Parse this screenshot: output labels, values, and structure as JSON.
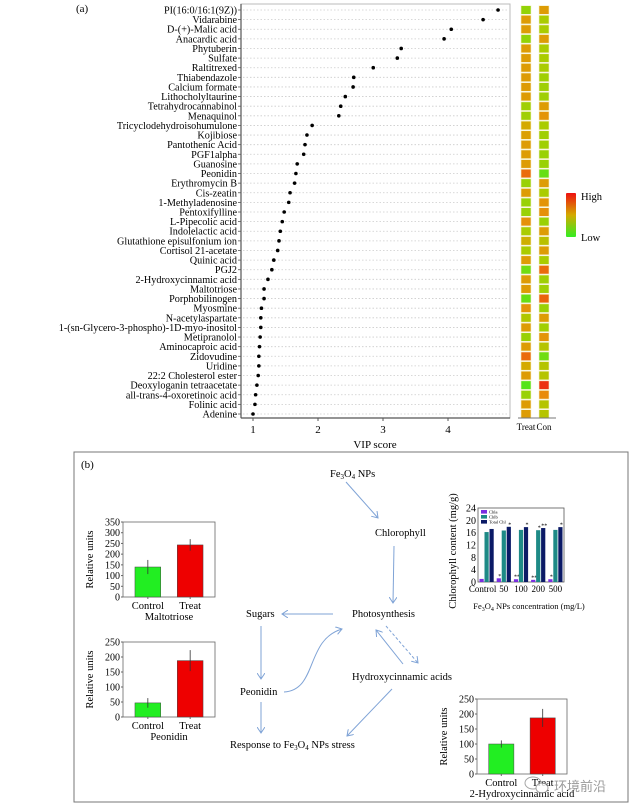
{
  "panel_a_label": "(a)",
  "panel_b_label": "(b)",
  "watermark": "环境前沿",
  "chart_data": [
    {
      "id": "vip",
      "type": "scatter",
      "title": "",
      "xlabel": "VIP score",
      "ylabel": "",
      "xlim": [
        0.8,
        4.95
      ],
      "xticks": [
        1,
        2,
        3,
        4
      ],
      "grid": "dotted horizontal",
      "categories": [
        "PI(16:0/16:1(9Z))",
        "Vidarabine",
        "D-(+)-Malic acid",
        "Anacardic acid",
        "Phytuberin",
        "Sulfate",
        "Raltitrexed",
        "Thiabendazole",
        "Calcium formate",
        "Lithocholyltaurine",
        "Tetrahydrocannabinol",
        "Menaquinol",
        "Tricyclodehydroisohumulone",
        "Kojibiose",
        "Pantothenic Acid",
        "PGF1alpha",
        "Guanosine",
        "Peonidin",
        "Erythromycin B",
        "Cis-zeatin",
        "1-Methyladenosine",
        "Pentoxifylline",
        "L-Pipecolic acid",
        "Indolelactic acid",
        "Glutathione episulfonium ion",
        "Cortisol 21-acetate",
        "Quinic acid",
        "PGJ2",
        "2-Hydroxycinnamic acid",
        "Maltotriose",
        "Porphobilinogen",
        "Myosmine",
        "N-acetylaspartate",
        "1-(sn-Glycero-3-phospho)-1D-myo-inositol",
        "Metipranolol",
        "Aminocaproic acid",
        "Zidovudine",
        "Uridine",
        "22:2 Cholesterol ester",
        "Deoxyloganin tetraacetate",
        "all-trans-4-oxoretinoic acid",
        "Folinic acid",
        "Adenine"
      ],
      "values": [
        4.77,
        4.54,
        4.05,
        3.94,
        3.28,
        3.22,
        2.85,
        2.55,
        2.54,
        2.42,
        2.35,
        2.32,
        1.91,
        1.83,
        1.8,
        1.78,
        1.68,
        1.66,
        1.64,
        1.57,
        1.55,
        1.48,
        1.45,
        1.42,
        1.4,
        1.38,
        1.32,
        1.29,
        1.23,
        1.17,
        1.17,
        1.13,
        1.12,
        1.12,
        1.11,
        1.1,
        1.09,
        1.09,
        1.08,
        1.06,
        1.04,
        1.03,
        1.0
      ]
    },
    {
      "id": "heatmap",
      "type": "heatmap",
      "columns": [
        "Treat",
        "Con"
      ],
      "scale_note": "0 = Low (green), 1 = High (red)",
      "legend": {
        "high": "High",
        "low": "Low",
        "colors": [
          "#33ee22",
          "#ee1111"
        ]
      },
      "rows": [
        [
          0.28,
          0.62
        ],
        [
          0.62,
          0.35
        ],
        [
          0.62,
          0.35
        ],
        [
          0.28,
          0.62
        ],
        [
          0.62,
          0.35
        ],
        [
          0.62,
          0.35
        ],
        [
          0.62,
          0.35
        ],
        [
          0.62,
          0.32
        ],
        [
          0.62,
          0.32
        ],
        [
          0.62,
          0.32
        ],
        [
          0.32,
          0.62
        ],
        [
          0.32,
          0.66
        ],
        [
          0.55,
          0.35
        ],
        [
          0.6,
          0.32
        ],
        [
          0.62,
          0.32
        ],
        [
          0.62,
          0.3
        ],
        [
          0.62,
          0.3
        ],
        [
          0.78,
          0.15
        ],
        [
          0.3,
          0.62
        ],
        [
          0.62,
          0.35
        ],
        [
          0.3,
          0.66
        ],
        [
          0.3,
          0.68
        ],
        [
          0.68,
          0.3
        ],
        [
          0.35,
          0.62
        ],
        [
          0.52,
          0.42
        ],
        [
          0.35,
          0.62
        ],
        [
          0.62,
          0.35
        ],
        [
          0.18,
          0.78
        ],
        [
          0.62,
          0.32
        ],
        [
          0.62,
          0.32
        ],
        [
          0.15,
          0.8
        ],
        [
          0.66,
          0.3
        ],
        [
          0.38,
          0.62
        ],
        [
          0.62,
          0.32
        ],
        [
          0.3,
          0.66
        ],
        [
          0.62,
          0.4
        ],
        [
          0.78,
          0.18
        ],
        [
          0.55,
          0.4
        ],
        [
          0.62,
          0.4
        ],
        [
          0.1,
          0.92
        ],
        [
          0.3,
          0.7
        ],
        [
          0.62,
          0.4
        ],
        [
          0.62,
          0.4
        ]
      ]
    },
    {
      "id": "maltotriose",
      "type": "bar",
      "title": "Maltotriose",
      "ylabel": "Relative units",
      "ylim": [
        0,
        350
      ],
      "yticks": [
        0,
        50,
        100,
        150,
        200,
        250,
        300,
        350
      ],
      "categories": [
        "Control",
        "Treat"
      ],
      "values": [
        140,
        243
      ],
      "errors": [
        33,
        27
      ],
      "colors": [
        "#22ee22",
        "#ee0000"
      ]
    },
    {
      "id": "peonidin",
      "type": "bar",
      "title": "Peonidin",
      "ylabel": "Relative units",
      "ylim": [
        0,
        250
      ],
      "yticks": [
        0,
        50,
        100,
        150,
        200,
        250
      ],
      "categories": [
        "Control",
        "Treat"
      ],
      "values": [
        47,
        188
      ],
      "errors": [
        16,
        35
      ],
      "colors": [
        "#22ee22",
        "#ee0000"
      ]
    },
    {
      "id": "hydroxycinnamic",
      "type": "bar",
      "title": "2-Hydroxycinnamic acid",
      "ylabel": "Relative units",
      "ylim": [
        0,
        250
      ],
      "yticks": [
        0,
        50,
        100,
        150,
        200,
        250
      ],
      "categories": [
        "Control",
        "Treat"
      ],
      "values": [
        100,
        187
      ],
      "errors": [
        12,
        30
      ],
      "colors": [
        "#22ee22",
        "#ee0000"
      ]
    },
    {
      "id": "chlorophyll",
      "type": "bar",
      "title": "",
      "xlabel": "Fe3O4 NPs concentration (mg/L)",
      "ylabel": "Chlorophyll content (mg/g)",
      "ylim": [
        0,
        24
      ],
      "yticks": [
        0,
        4,
        8,
        12,
        16,
        20,
        24
      ],
      "categories": [
        "Control",
        "50",
        "100",
        "200",
        "500"
      ],
      "series": [
        {
          "name": "Chla",
          "color": "#7a2ee0",
          "values": [
            1.0,
            1.2,
            0.9,
            0.7,
            0.9
          ],
          "marks": [
            "",
            "*",
            "**",
            "**",
            "*"
          ]
        },
        {
          "name": "Chlb",
          "color": "#1e8a86",
          "values": [
            16.2,
            16.7,
            16.9,
            16.8,
            16.9
          ],
          "marks": [
            "",
            "",
            "",
            "*",
            ""
          ]
        },
        {
          "name": "Total Chl",
          "color": "#0b1a66",
          "values": [
            17.2,
            17.9,
            17.8,
            17.5,
            17.8
          ],
          "marks": [
            "",
            "*",
            "*",
            "**",
            "*"
          ]
        }
      ]
    }
  ],
  "pathway": {
    "nodes": {
      "fe3o4": {
        "base": "Fe",
        "sub1": "3",
        "mid": "O",
        "sub2": "4",
        "tail": " NPs"
      },
      "chlorophyll": "Chlorophyll",
      "photosynthesis": "Photosynthesis",
      "sugars": "Sugars",
      "peonidin": "Peonidin",
      "hydroxycinnamic": "Hydroxycinnamic acids",
      "response": {
        "pre": "Response to Fe",
        "sub1": "3",
        "mid": "O",
        "sub2": "4",
        "tail": " NPs stress"
      }
    },
    "arrow_color": "#7fa3d6"
  }
}
